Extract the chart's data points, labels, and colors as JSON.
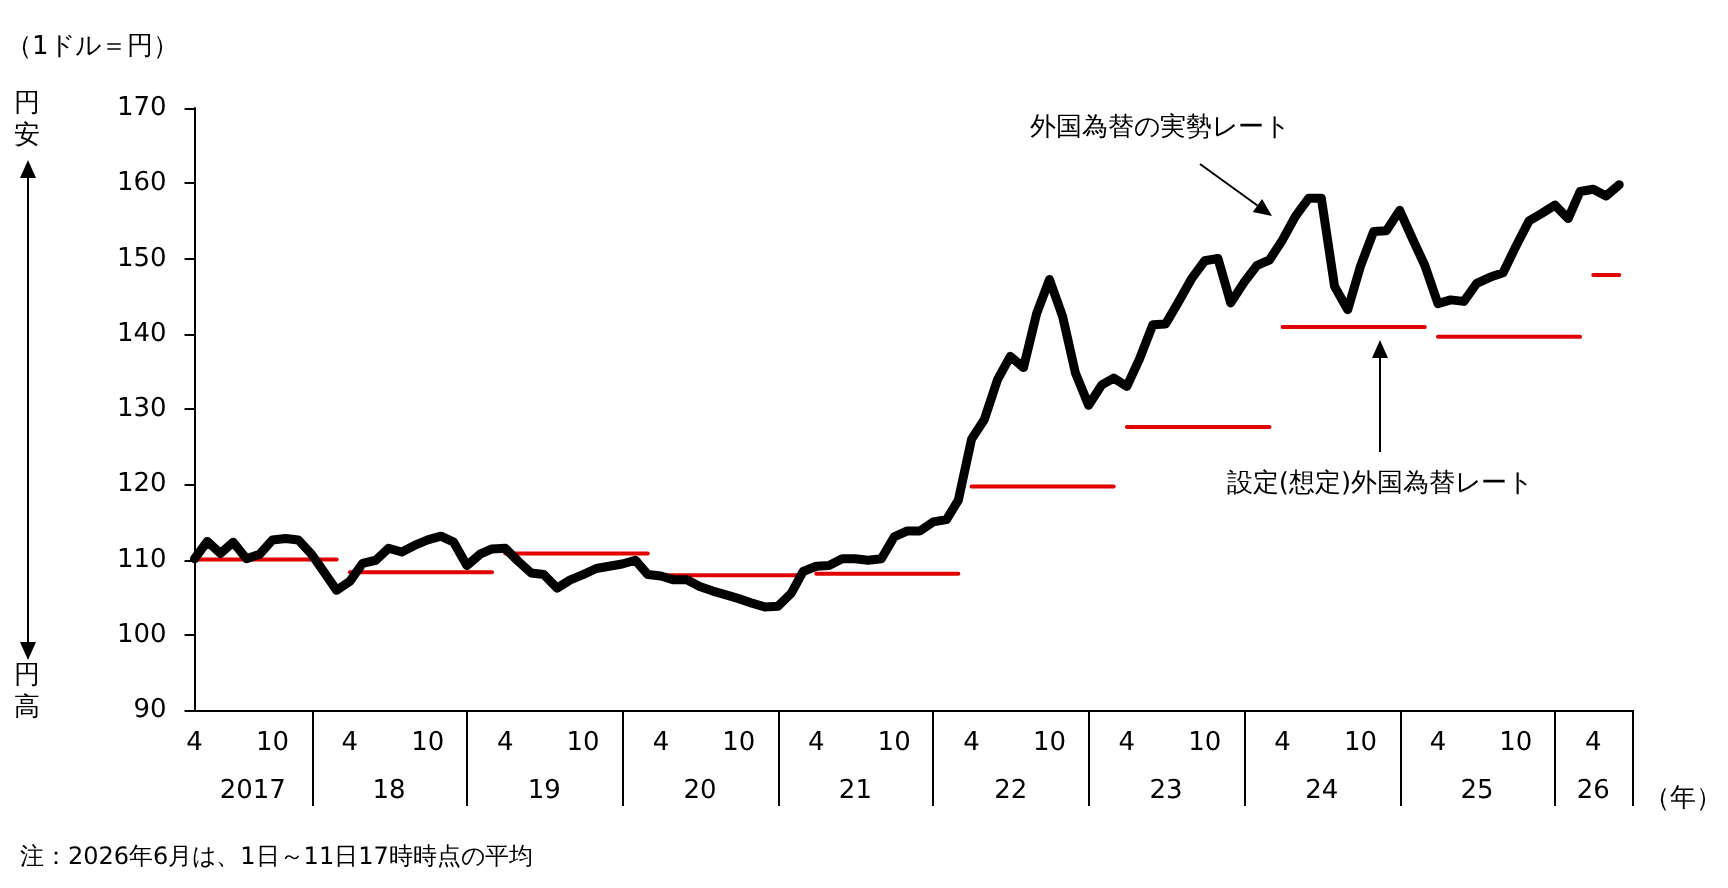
{
  "chart_data": {
    "type": "line",
    "ylabel": "（1ドル＝円）",
    "xlabel": "（年）",
    "x": [
      "2017-04",
      "2017-05",
      "2017-06",
      "2017-07",
      "2017-08",
      "2017-09",
      "2017-10",
      "2017-11",
      "2017-12",
      "2018-01",
      "2018-02",
      "2018-03",
      "2018-04",
      "2018-05",
      "2018-06",
      "2018-07",
      "2018-08",
      "2018-09",
      "2018-10",
      "2018-11",
      "2018-12",
      "2019-01",
      "2019-02",
      "2019-03",
      "2019-04",
      "2019-05",
      "2019-06",
      "2019-07",
      "2019-08",
      "2019-09",
      "2019-10",
      "2019-11",
      "2019-12",
      "2020-01",
      "2020-02",
      "2020-03",
      "2020-04",
      "2020-05",
      "2020-06",
      "2020-07",
      "2020-08",
      "2020-09",
      "2020-10",
      "2020-11",
      "2020-12",
      "2021-01",
      "2021-02",
      "2021-03",
      "2021-04",
      "2021-05",
      "2021-06",
      "2021-07",
      "2021-08",
      "2021-09",
      "2021-10",
      "2021-11",
      "2021-12",
      "2022-01",
      "2022-02",
      "2022-03",
      "2022-04",
      "2022-05",
      "2022-06",
      "2022-07",
      "2022-08",
      "2022-09",
      "2022-10",
      "2022-11",
      "2022-12",
      "2023-01",
      "2023-02",
      "2023-03",
      "2023-04",
      "2023-05",
      "2023-06",
      "2023-07",
      "2023-08",
      "2023-09",
      "2023-10",
      "2023-11",
      "2023-12",
      "2024-01",
      "2024-02",
      "2024-03",
      "2024-04",
      "2024-05",
      "2024-06",
      "2024-07",
      "2024-08",
      "2024-09",
      "2024-10",
      "2024-11",
      "2024-12",
      "2025-01",
      "2025-02",
      "2025-03",
      "2025-04",
      "2025-05",
      "2025-06",
      "2025-07",
      "2025-08",
      "2025-09",
      "2025-10",
      "2025-11",
      "2025-12",
      "2026-01",
      "2026-02",
      "2026-03",
      "2026-04",
      "2026-05",
      "2026-06"
    ],
    "series": [
      {
        "color": "#000000",
        "values": [
          110.1,
          112.4,
          110.8,
          112.3,
          110.1,
          110.7,
          112.6,
          112.8,
          112.6,
          110.7,
          108.2,
          105.9,
          107.1,
          109.5,
          109.9,
          111.5,
          111.0,
          111.9,
          112.6,
          113.1,
          112.3,
          109.2,
          110.7,
          111.4,
          111.5,
          109.8,
          108.2,
          108.0,
          106.2,
          107.3,
          108.0,
          108.8,
          109.1,
          109.4,
          109.9,
          108.0,
          107.8,
          107.3,
          107.3,
          106.4,
          105.8,
          105.3,
          104.8,
          104.2,
          103.7,
          103.8,
          105.5,
          108.4,
          109.1,
          109.2,
          110.1,
          110.1,
          109.9,
          110.1,
          113.0,
          113.8,
          113.8,
          115.0,
          115.3,
          117.9,
          126.0,
          128.6,
          133.9,
          137.0,
          135.5,
          142.7,
          147.2,
          142.3,
          134.8,
          130.5,
          133.2,
          134.1,
          133.0,
          136.7,
          141.2,
          141.3,
          144.3,
          147.4,
          149.7,
          150.0,
          144.1,
          146.8,
          149.1,
          149.8,
          152.5,
          155.6,
          158.0,
          158.0,
          146.3,
          143.2,
          149.0,
          153.6,
          153.7,
          156.4,
          152.5,
          149.1,
          144.0,
          144.5,
          144.3,
          146.7,
          147.5,
          148.1,
          151.6,
          155.0,
          156.0,
          157.1,
          155.3,
          158.9,
          159.2,
          158.3,
          159.8
        ]
      },
      {
        "color": "#e00000",
        "x": [
          "2017-04",
          "2018-03"
        ],
        "values": [
          110.0,
          110.0
        ]
      },
      {
        "color": "#e00000",
        "x": [
          "2018-04",
          "2019-03"
        ],
        "values": [
          108.3,
          108.3
        ]
      },
      {
        "color": "#e00000",
        "x": [
          "2019-04",
          "2020-03"
        ],
        "values": [
          110.8,
          110.8
        ]
      },
      {
        "color": "#e00000",
        "x": [
          "2020-04",
          "2021-03"
        ],
        "values": [
          107.9,
          107.9
        ]
      },
      {
        "color": "#e00000",
        "x": [
          "2021-04",
          "2022-03"
        ],
        "values": [
          108.1,
          108.1
        ]
      },
      {
        "color": "#e00000",
        "x": [
          "2022-04",
          "2023-03"
        ],
        "values": [
          119.7,
          119.7
        ]
      },
      {
        "color": "#e00000",
        "x": [
          "2023-04",
          "2024-03"
        ],
        "values": [
          127.6,
          127.6
        ]
      },
      {
        "color": "#e00000",
        "x": [
          "2024-04",
          "2025-03"
        ],
        "values": [
          140.9,
          140.9
        ]
      },
      {
        "color": "#e00000",
        "x": [
          "2025-04",
          "2026-03"
        ],
        "values": [
          139.6,
          139.6
        ]
      },
      {
        "color": "#e00000",
        "x": [
          "2026-04",
          "2026-06"
        ],
        "values": [
          147.8,
          147.8
        ]
      }
    ],
    "xlim": [
      "2017-04",
      "2026-07"
    ],
    "xticks": [
      {
        "value": "2017-04",
        "label": "4"
      },
      {
        "value": "2017-10",
        "label": "10"
      },
      {
        "value": "2018-01",
        "label": null
      },
      {
        "value": "2018-04",
        "label": "4"
      },
      {
        "value": "2018-10",
        "label": "10"
      },
      {
        "value": "2019-01",
        "label": null
      },
      {
        "value": "2019-04",
        "label": "4"
      },
      {
        "value": "2019-10",
        "label": "10"
      },
      {
        "value": "2020-01",
        "label": null
      },
      {
        "value": "2020-04",
        "label": "4"
      },
      {
        "value": "2020-10",
        "label": "10"
      },
      {
        "value": "2021-01",
        "label": null
      },
      {
        "value": "2021-04",
        "label": "4"
      },
      {
        "value": "2021-10",
        "label": "10"
      },
      {
        "value": "2022-01",
        "label": null
      },
      {
        "value": "2022-04",
        "label": "4"
      },
      {
        "value": "2022-10",
        "label": "10"
      },
      {
        "value": "2023-01",
        "label": null
      },
      {
        "value": "2023-04",
        "label": "4"
      },
      {
        "value": "2023-10",
        "label": "10"
      },
      {
        "value": "2024-01",
        "label": null
      },
      {
        "value": "2024-04",
        "label": "4"
      },
      {
        "value": "2024-10",
        "label": "10"
      },
      {
        "value": "2025-01",
        "label": null
      },
      {
        "value": "2025-04",
        "label": "4"
      },
      {
        "value": "2025-10",
        "label": "10"
      },
      {
        "value": "2026-01",
        "label": null
      },
      {
        "value": "2026-04",
        "label": "4"
      },
      {
        "value": "2026-07",
        "label": null
      }
    ],
    "x2lim": [
      "2017-04",
      "2026-07"
    ],
    "x2ticks": [
      {
        "value": "2017-08-16",
        "label": "2017"
      },
      {
        "value": "2018-07-02",
        "label": "18"
      },
      {
        "value": "2019-07-02",
        "label": "19"
      },
      {
        "value": "2020-07-02",
        "label": "20"
      },
      {
        "value": "2021-07-02",
        "label": "21"
      },
      {
        "value": "2022-07-02",
        "label": "22"
      },
      {
        "value": "2023-07-02",
        "label": "23"
      },
      {
        "value": "2024-07-02",
        "label": "24"
      },
      {
        "value": "2025-07-02",
        "label": "25"
      },
      {
        "value": "2026-04",
        "label": "26"
      }
    ],
    "ylim": [
      90,
      170
    ],
    "yticks": [
      90,
      100,
      110,
      120,
      130,
      140,
      150,
      160,
      170
    ],
    "marker": "none",
    "line_style": "solid",
    "annotations": [
      "円安",
      "円高",
      "注：2026年6月は、1日～11日17時時点の平均",
      "外国為替の実勢レート",
      "設定(想定)外国為替レート"
    ]
  }
}
